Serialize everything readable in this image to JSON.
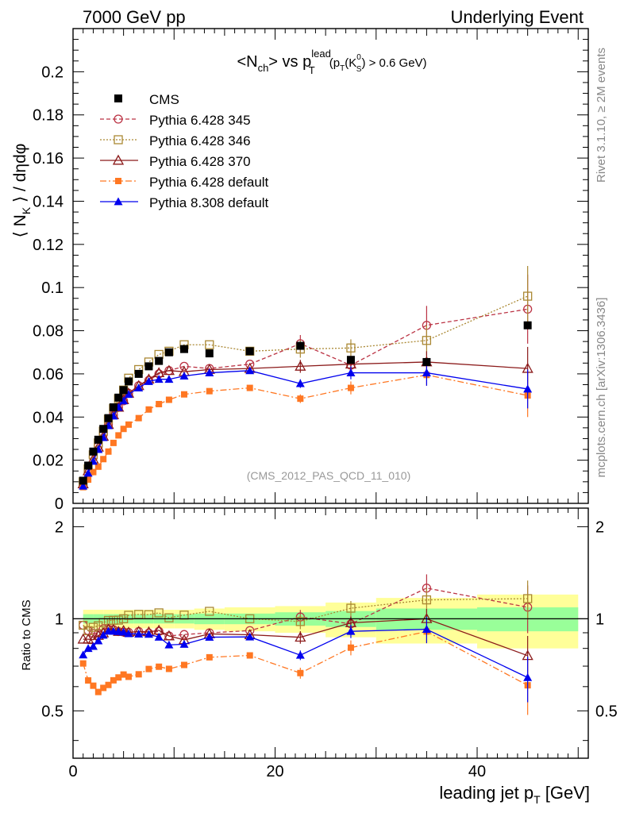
{
  "header": {
    "left": "7000 GeV pp",
    "right": "Underlying Event"
  },
  "side_labels": {
    "rivet": "Rivet 3.1.10, ≥ 2M events",
    "mcplots": "mcplots.cern.ch [arXiv:1306.3436]"
  },
  "chart_data": {
    "type": "scatter",
    "title_parts": {
      "open": "<N",
      "ch_sub": "ch",
      "vs": "> vs p",
      "lead_sup": "lead",
      "T_sub": "T",
      "cut_open": "(p",
      "cut_T_sub": "T",
      "cut_K": "(K",
      "zero_sup": "0",
      "S_sub": "S",
      "cut_close": ") > 0.6 GeV)"
    },
    "analysis_id": "(CMS_2012_PAS_QCD_11_010)",
    "ylabel_parts": {
      "open": "⟨ N",
      "K_sub": "K",
      "close": " ⟩ / dηdφ"
    },
    "xlabel_parts": {
      "main": "leading jet p",
      "T_sub": "T",
      "unit": " [GeV]"
    },
    "ratio_ylabel": "Ratio to CMS",
    "xlim": [
      0,
      51
    ],
    "ylim": [
      0,
      0.22
    ],
    "ratio_ylim": [
      0.35,
      2.3
    ],
    "x_ticks": [
      0,
      20,
      40
    ],
    "y_ticks": [
      0,
      0.02,
      0.04,
      0.06,
      0.08,
      0.1,
      0.12,
      0.14,
      0.16,
      0.18,
      0.2
    ],
    "y_tick_labels": [
      "0",
      "0.02",
      "0.04",
      "0.06",
      "0.08",
      "0.1",
      "0.12",
      "0.14",
      "0.16",
      "0.18",
      "0.2"
    ],
    "ratio_ticks": [
      0.5,
      1,
      2
    ],
    "ratio_tick_labels": [
      "0.5",
      "1",
      "2"
    ],
    "legend_position": "top-left",
    "x": [
      1.0,
      1.5,
      2.0,
      2.5,
      3.0,
      3.5,
      4.0,
      4.5,
      5.0,
      5.5,
      6.5,
      7.5,
      8.5,
      9.5,
      11.0,
      13.5,
      17.5,
      22.5,
      27.5,
      35.0,
      45.0
    ],
    "cms": {
      "name": "CMS",
      "values": [
        0.0105,
        0.0175,
        0.024,
        0.0295,
        0.0345,
        0.0395,
        0.0445,
        0.049,
        0.0525,
        0.0565,
        0.06,
        0.0635,
        0.066,
        0.07,
        0.0715,
        0.0695,
        0.0705,
        0.073,
        0.0665,
        0.0655,
        0.0825
      ],
      "band_edges": [
        1,
        2,
        3,
        4,
        5,
        6,
        7,
        8,
        9,
        10,
        12,
        15,
        20,
        25,
        30,
        40,
        50
      ],
      "band_stat": [
        0.035,
        0.035,
        0.035,
        0.035,
        0.035,
        0.035,
        0.035,
        0.035,
        0.035,
        0.035,
        0.04,
        0.04,
        0.05,
        0.06,
        0.08,
        0.09,
        0.13
      ],
      "band_total": [
        0.07,
        0.07,
        0.07,
        0.07,
        0.07,
        0.07,
        0.07,
        0.07,
        0.07,
        0.07,
        0.08,
        0.09,
        0.1,
        0.13,
        0.17,
        0.2,
        0.28
      ],
      "color": "#000000",
      "band_stat_color": "#99ff99",
      "band_total_color": "#ffff99"
    },
    "series": [
      {
        "name": "Pythia 6.428 345",
        "color": "#bb3344",
        "marker": "circle-open",
        "dash": "5,3",
        "values": [
          0.01,
          0.016,
          0.0215,
          0.0265,
          0.032,
          0.0365,
          0.041,
          0.0445,
          0.0475,
          0.051,
          0.0545,
          0.057,
          0.06,
          0.0615,
          0.0635,
          0.0625,
          0.0645,
          0.074,
          0.064,
          0.0825,
          0.09
        ],
        "errors": [
          0,
          0,
          0,
          0,
          0,
          0,
          0,
          0,
          0,
          0,
          0,
          0,
          0,
          0,
          0,
          0,
          0,
          0.004,
          0.004,
          0.009,
          0.016
        ]
      },
      {
        "name": "Pythia 6.428 346",
        "color": "#aa8833",
        "marker": "square-open",
        "dash": "2,2",
        "values": [
          0.01,
          0.016,
          0.0225,
          0.028,
          0.0335,
          0.039,
          0.044,
          0.0485,
          0.0525,
          0.058,
          0.062,
          0.0655,
          0.069,
          0.0705,
          0.0735,
          0.0735,
          0.0705,
          0.0715,
          0.072,
          0.0755,
          0.096
        ],
        "errors": [
          0,
          0,
          0,
          0,
          0,
          0,
          0,
          0,
          0,
          0,
          0,
          0,
          0,
          0,
          0,
          0,
          0,
          0.004,
          0.004,
          0.007,
          0.014
        ]
      },
      {
        "name": "Pythia 6.428 370",
        "color": "#8b1a1a",
        "marker": "triangle-open",
        "dash": "",
        "values": [
          0.009,
          0.015,
          0.0205,
          0.026,
          0.031,
          0.0365,
          0.041,
          0.0445,
          0.048,
          0.051,
          0.0545,
          0.0575,
          0.0605,
          0.0615,
          0.061,
          0.062,
          0.0625,
          0.0635,
          0.0645,
          0.0655,
          0.0625
        ],
        "errors": [
          0,
          0,
          0,
          0,
          0,
          0,
          0,
          0,
          0,
          0,
          0,
          0,
          0,
          0,
          0,
          0,
          0,
          0.003,
          0.003,
          0.005,
          0.01
        ]
      },
      {
        "name": "Pythia 6.428 default",
        "color": "#ff7722",
        "marker": "square-filled",
        "dash": "8,3,2,3",
        "values": [
          0.0075,
          0.011,
          0.0145,
          0.017,
          0.0205,
          0.024,
          0.028,
          0.0315,
          0.0345,
          0.0365,
          0.0395,
          0.0435,
          0.046,
          0.048,
          0.0505,
          0.052,
          0.0535,
          0.0485,
          0.0535,
          0.0595,
          0.05
        ],
        "errors": [
          0,
          0,
          0,
          0,
          0,
          0,
          0,
          0,
          0,
          0,
          0,
          0,
          0,
          0,
          0,
          0,
          0,
          0.002,
          0.003,
          0.005,
          0.01
        ]
      },
      {
        "name": "Pythia 8.308 default",
        "color": "#0000ee",
        "marker": "triangle-filled",
        "dash": "",
        "values": [
          0.008,
          0.014,
          0.0195,
          0.025,
          0.0305,
          0.036,
          0.0405,
          0.0445,
          0.0475,
          0.0505,
          0.0535,
          0.0565,
          0.0575,
          0.0575,
          0.059,
          0.0605,
          0.0615,
          0.0555,
          0.0605,
          0.0605,
          0.053
        ],
        "errors": [
          0,
          0,
          0,
          0,
          0,
          0,
          0,
          0,
          0,
          0,
          0,
          0,
          0,
          0,
          0,
          0,
          0,
          0.002,
          0.003,
          0.006,
          0.009
        ]
      }
    ]
  }
}
